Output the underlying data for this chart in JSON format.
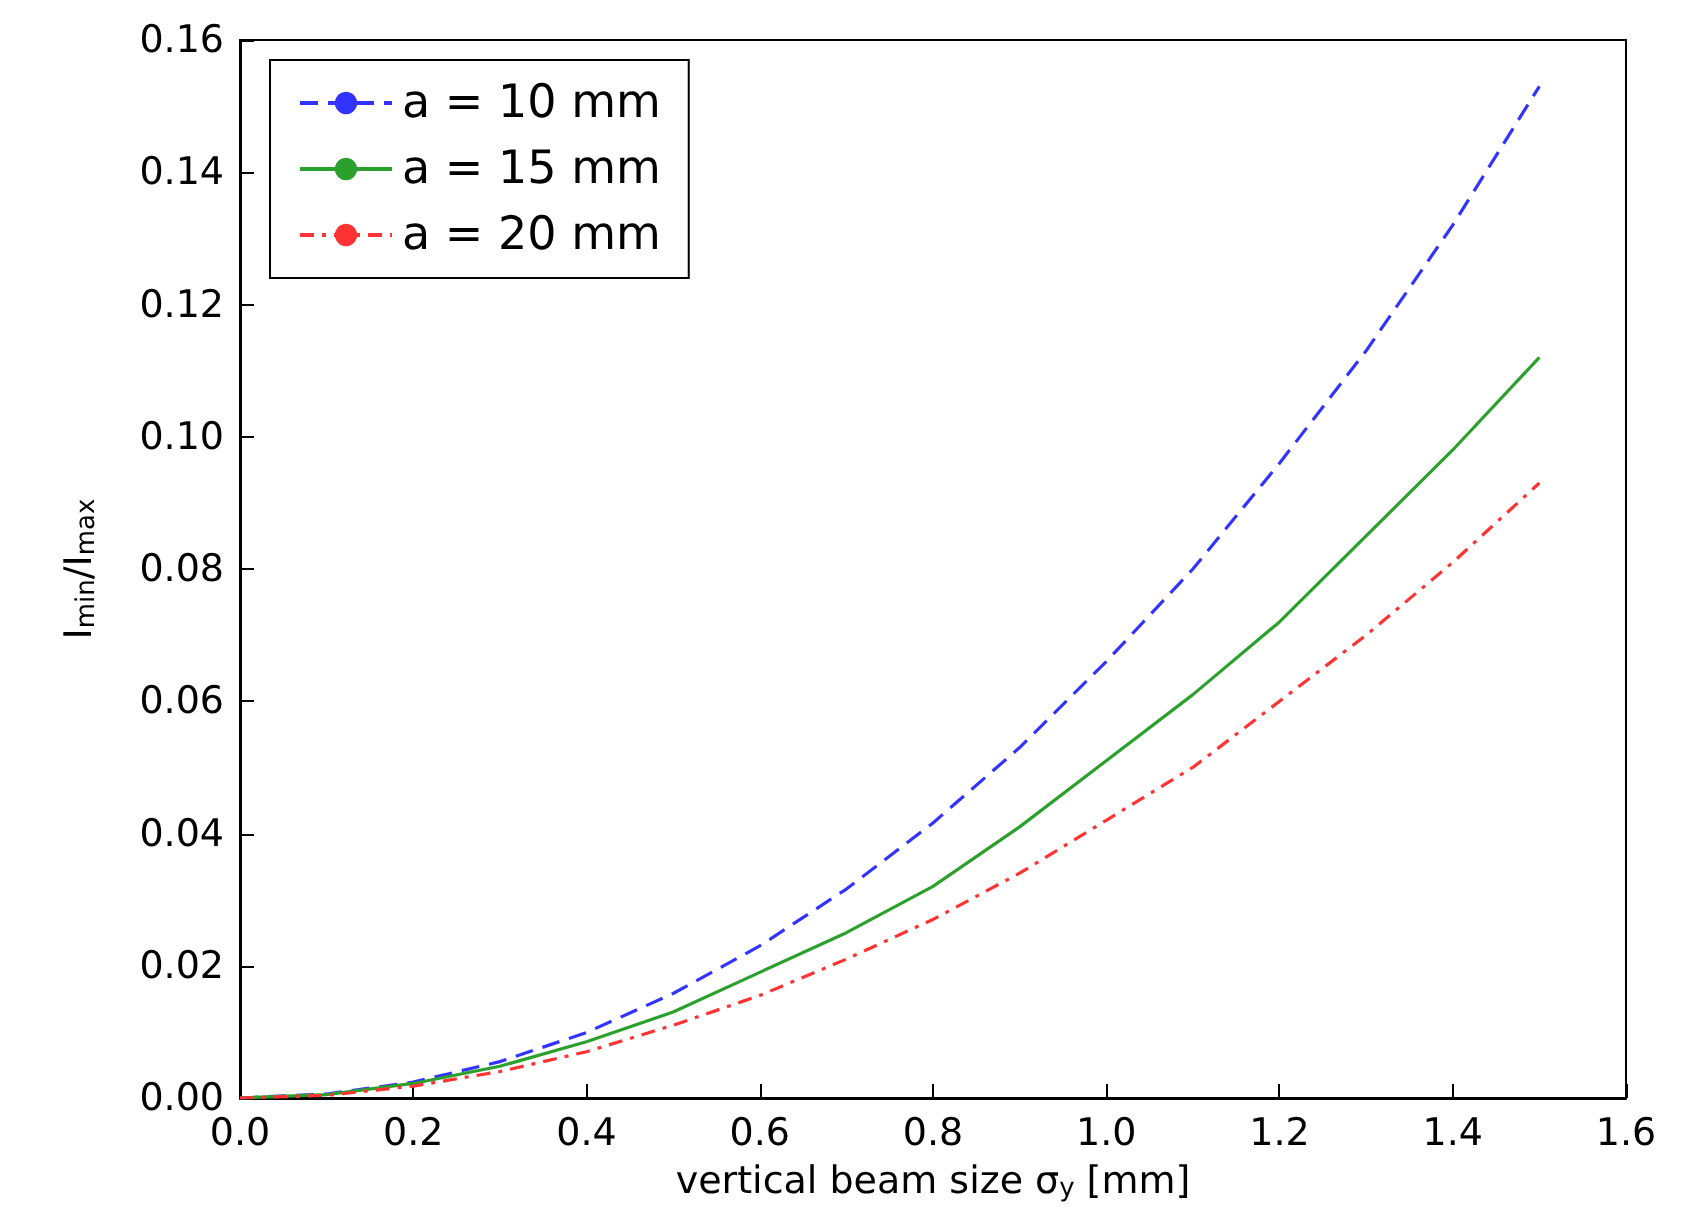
{
  "chart_data": {
    "type": "line",
    "xlabel": "vertical beam size σ$_{y}$ [mm]",
    "ylabel": "I$_{min}$/I$_{max}$",
    "x": [
      0,
      0.1,
      0.2,
      0.3,
      0.4,
      0.5,
      0.6,
      0.7,
      0.8,
      0.9,
      1.0,
      1.1,
      1.2,
      1.3,
      1.4,
      1.5
    ],
    "series": [
      {
        "name": "a = 10 mm",
        "color": "#3333ff",
        "line_style": "dashed",
        "values": [
          0,
          0.0006,
          0.0024,
          0.0055,
          0.0099,
          0.0158,
          0.023,
          0.0316,
          0.0416,
          0.053,
          0.066,
          0.08,
          0.096,
          0.113,
          0.132,
          0.153
        ]
      },
      {
        "name": "a = 15 mm",
        "color": "#2ca02c",
        "line_style": "solid",
        "values": [
          0,
          0.0005,
          0.0022,
          0.0048,
          0.0085,
          0.013,
          0.019,
          0.025,
          0.032,
          0.041,
          0.051,
          0.061,
          0.072,
          0.085,
          0.098,
          0.112
        ]
      },
      {
        "name": "a = 20 mm",
        "color": "#ff3333",
        "line_style": "dashdot",
        "values": [
          0,
          0.0004,
          0.0018,
          0.004,
          0.007,
          0.011,
          0.0155,
          0.021,
          0.027,
          0.034,
          0.042,
          0.05,
          0.06,
          0.07,
          0.081,
          0.093
        ]
      }
    ],
    "xlim": [
      0,
      1.6
    ],
    "xticks": [
      {
        "value": 0,
        "label": "0.0"
      },
      {
        "value": 0.2,
        "label": "0.2"
      },
      {
        "value": 0.4,
        "label": "0.4"
      },
      {
        "value": 0.6,
        "label": "0.6"
      },
      {
        "value": 0.8,
        "label": "0.8"
      },
      {
        "value": 1.0,
        "label": "1.0"
      },
      {
        "value": 1.2,
        "label": "1.2"
      },
      {
        "value": 1.4,
        "label": "1.4"
      },
      {
        "value": 1.6,
        "label": "1.6"
      }
    ],
    "ylim": [
      0,
      0.16
    ],
    "yticks": [
      {
        "value": 0,
        "label": "0.00"
      },
      {
        "value": 0.02,
        "label": "0.02"
      },
      {
        "value": 0.04,
        "label": "0.04"
      },
      {
        "value": 0.06,
        "label": "0.06"
      },
      {
        "value": 0.08,
        "label": "0.08"
      },
      {
        "value": 0.1,
        "label": "0.10"
      },
      {
        "value": 0.12,
        "label": "0.12"
      },
      {
        "value": 0.14,
        "label": "0.14"
      },
      {
        "value": 0.16,
        "label": "0.16"
      }
    ],
    "grid": false,
    "legend": "top left",
    "marker": "none"
  }
}
